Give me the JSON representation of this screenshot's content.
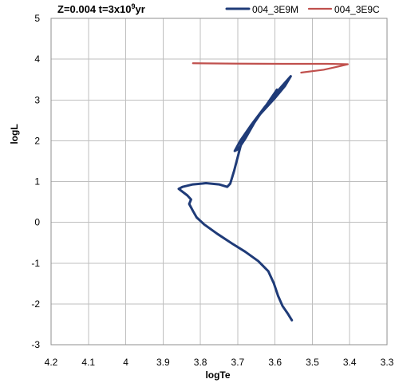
{
  "chart_data": {
    "type": "line",
    "title": {
      "prefix": "Z=0.004 t=3x10",
      "superscript": "9",
      "suffix": "yr"
    },
    "xlabel": "logTe",
    "ylabel": "logL",
    "xlim": [
      4.2,
      3.3
    ],
    "ylim": [
      -3,
      5
    ],
    "x_reversed": true,
    "x_ticks": [
      "4.2",
      "4.1",
      "4",
      "3.9",
      "3.8",
      "3.7",
      "3.6",
      "3.5",
      "3.4",
      "3.3"
    ],
    "y_ticks": [
      "5",
      "4",
      "3",
      "2",
      "1",
      "0",
      "-1",
      "-2",
      "-3"
    ],
    "grid": true,
    "legend_position": "top-right",
    "series": [
      {
        "name": "004_3E9M",
        "color": "#1f3b78",
        "points": [
          [
            3.555,
            -2.4
          ],
          [
            3.565,
            -2.25
          ],
          [
            3.58,
            -2.05
          ],
          [
            3.592,
            -1.8
          ],
          [
            3.603,
            -1.5
          ],
          [
            3.618,
            -1.2
          ],
          [
            3.645,
            -0.95
          ],
          [
            3.68,
            -0.72
          ],
          [
            3.715,
            -0.52
          ],
          [
            3.755,
            -0.28
          ],
          [
            3.79,
            -0.05
          ],
          [
            3.81,
            0.12
          ],
          [
            3.82,
            0.28
          ],
          [
            3.83,
            0.45
          ],
          [
            3.825,
            0.56
          ],
          [
            3.835,
            0.66
          ],
          [
            3.858,
            0.82
          ],
          [
            3.848,
            0.87
          ],
          [
            3.82,
            0.93
          ],
          [
            3.785,
            0.96
          ],
          [
            3.75,
            0.93
          ],
          [
            3.728,
            0.87
          ],
          [
            3.72,
            0.95
          ],
          [
            3.71,
            1.25
          ],
          [
            3.7,
            1.6
          ],
          [
            3.69,
            1.95
          ],
          [
            3.67,
            2.3
          ],
          [
            3.64,
            2.65
          ],
          [
            3.6,
            3.05
          ],
          [
            3.573,
            3.35
          ],
          [
            3.558,
            3.58
          ],
          [
            3.59,
            3.25
          ],
          [
            3.628,
            2.82
          ],
          [
            3.665,
            2.37
          ],
          [
            3.693,
            2.0
          ],
          [
            3.708,
            1.75
          ],
          [
            3.698,
            1.8
          ],
          [
            3.68,
            2.05
          ],
          [
            3.655,
            2.45
          ],
          [
            3.625,
            2.85
          ],
          [
            3.595,
            3.25
          ]
        ]
      },
      {
        "name": "004_3E9C",
        "color": "#c0504d",
        "points": [
          [
            3.82,
            3.9
          ],
          [
            3.7,
            3.89
          ],
          [
            3.58,
            3.885
          ],
          [
            3.46,
            3.885
          ],
          [
            3.405,
            3.875
          ],
          [
            3.43,
            3.82
          ],
          [
            3.47,
            3.74
          ],
          [
            3.53,
            3.67
          ]
        ]
      }
    ]
  }
}
